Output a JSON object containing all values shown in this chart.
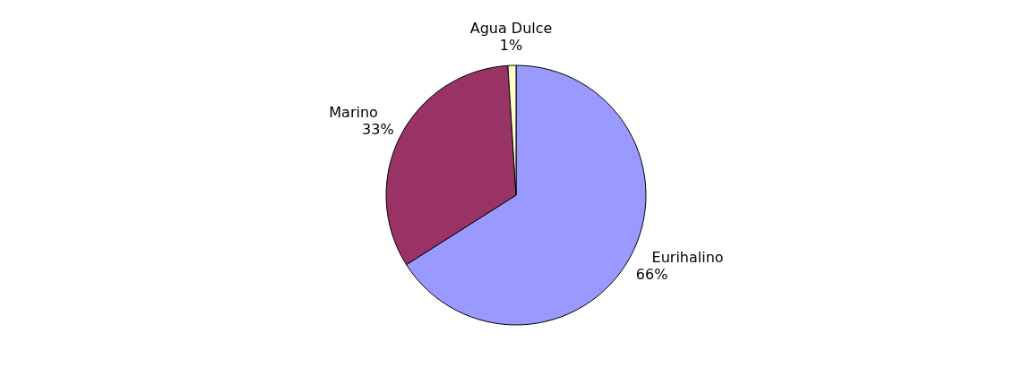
{
  "chart_data": {
    "type": "pie",
    "categories": [
      "Eurihalino",
      "Marino",
      "Agua Dulce"
    ],
    "values": [
      66,
      33,
      1
    ],
    "value_labels": [
      "66%",
      "33%",
      "1%"
    ],
    "colors": [
      "#9999ff",
      "#993366",
      "#ffffcc"
    ]
  }
}
